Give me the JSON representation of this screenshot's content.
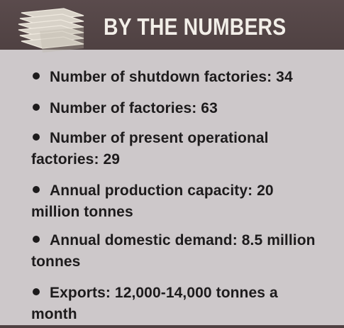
{
  "header": {
    "title": "BY THE NUMBERS"
  },
  "logo": {
    "icon": "stacked-sheets-icon"
  },
  "items": [
    {
      "line1": "Number of shutdown factories: 34",
      "line2": ""
    },
    {
      "line1": "Number of factories: 63",
      "line2": ""
    },
    {
      "line1": "Number of present operational",
      "line2": "factories: 29"
    },
    {
      "line1": "Annual production capacity: 20",
      "line2": "million tonnes"
    },
    {
      "line1": "Annual domestic demand: 8.5 million",
      "line2": "tonnes"
    },
    {
      "line1": "Exports: 12,000-14,000 tonnes a",
      "line2": "month"
    }
  ],
  "colors": {
    "background": "#cdc8ca",
    "header": "#4f4142",
    "header_text": "#f2eee8",
    "text": "#1d1b1c"
  }
}
